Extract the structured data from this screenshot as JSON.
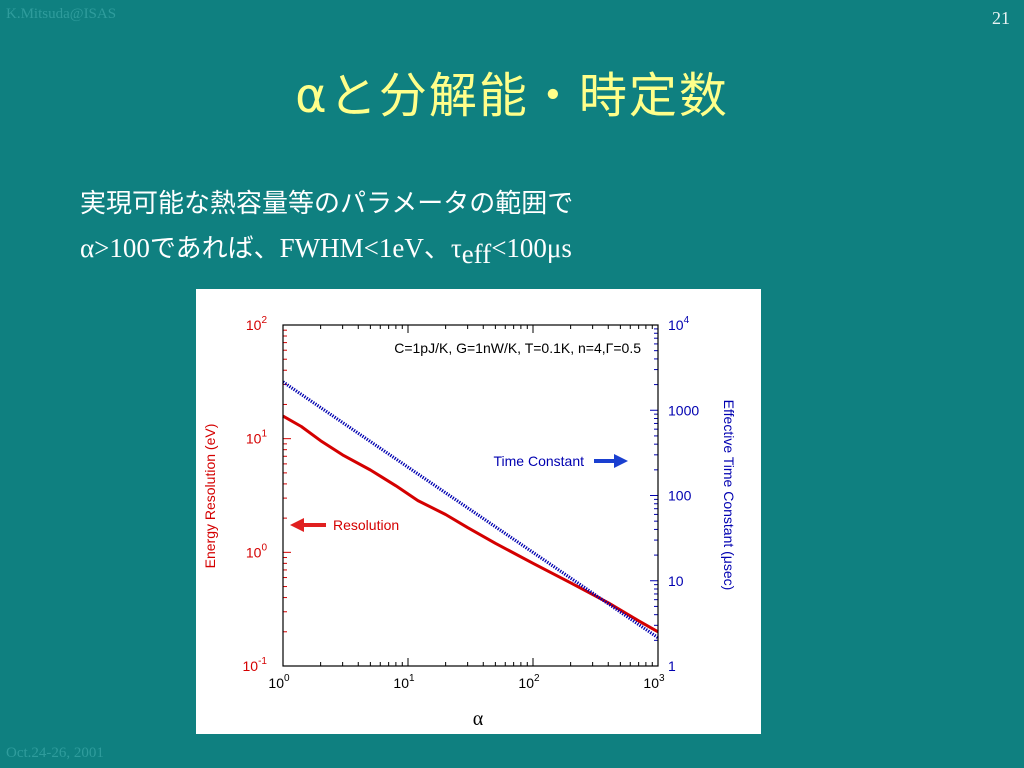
{
  "header": {
    "author": "K.Mitsuda@ISAS",
    "page_number": "21",
    "title": "αと分解能・時定数"
  },
  "footer": {
    "date": "Oct.24-26, 2001"
  },
  "body": {
    "line1": "実現可能な熱容量等のパラメータの範囲で",
    "line2_prefix": "α>100",
    "line2_mid": "であれば、",
    "line2_fwhm": "FWHM<1eV、τ",
    "line2_sub": "eff",
    "line2_end": "<100μs"
  },
  "chart_data": {
    "type": "line",
    "title": "C=1pJ/K, G=1nW/K, T=0.1K, n=4,Γ=0.5",
    "xlabel": "α",
    "ylabel": "Energy Resolution (eV)",
    "ylabel_right": "Effective Time Constant (μsec)",
    "xscale": "log",
    "xlim": [
      1,
      1000
    ],
    "yscale": "log",
    "ylim": [
      0.1,
      100
    ],
    "yscale_right": "log",
    "ylim_right": [
      1,
      10000
    ],
    "x_ticks": [
      {
        "base": "10",
        "exp": "0"
      },
      {
        "base": "10",
        "exp": "1"
      },
      {
        "base": "10",
        "exp": "2"
      },
      {
        "base": "10",
        "exp": "3"
      }
    ],
    "y_ticks_left": [
      {
        "base": "10",
        "exp": "2"
      },
      {
        "base": "10",
        "exp": "1"
      },
      {
        "base": "10",
        "exp": "0"
      },
      {
        "base": "10",
        "exp": "-1"
      }
    ],
    "y_ticks_right": [
      {
        "base": "10",
        "exp": "4"
      },
      {
        "base": "1000",
        "exp": ""
      },
      {
        "base": "100",
        "exp": ""
      },
      {
        "base": "10",
        "exp": ""
      },
      {
        "base": "1",
        "exp": ""
      }
    ],
    "series": [
      {
        "name": "Resolution",
        "axis": "left",
        "color": "#d40000",
        "style": "solid",
        "x": [
          1,
          1.4,
          2,
          3,
          5,
          8,
          12,
          20,
          30,
          50,
          100,
          200,
          400,
          700,
          1000
        ],
        "y": [
          15.8,
          12.8,
          9.6,
          7.2,
          5.3,
          3.85,
          2.85,
          2.15,
          1.65,
          1.2,
          0.8,
          0.54,
          0.36,
          0.25,
          0.2
        ]
      },
      {
        "name": "Time Constant",
        "axis": "right",
        "color": "#0000b0",
        "style": "dotted",
        "x": [
          1,
          10,
          100,
          1000
        ],
        "y": [
          2150,
          215,
          21.5,
          2.15
        ]
      }
    ],
    "annotations": [
      {
        "text": "Time Constant",
        "arrow": "right"
      },
      {
        "text": "Resolution",
        "arrow": "left"
      }
    ],
    "colors": {
      "left_axis": "#d40000",
      "right_axis": "#0000b0"
    }
  }
}
